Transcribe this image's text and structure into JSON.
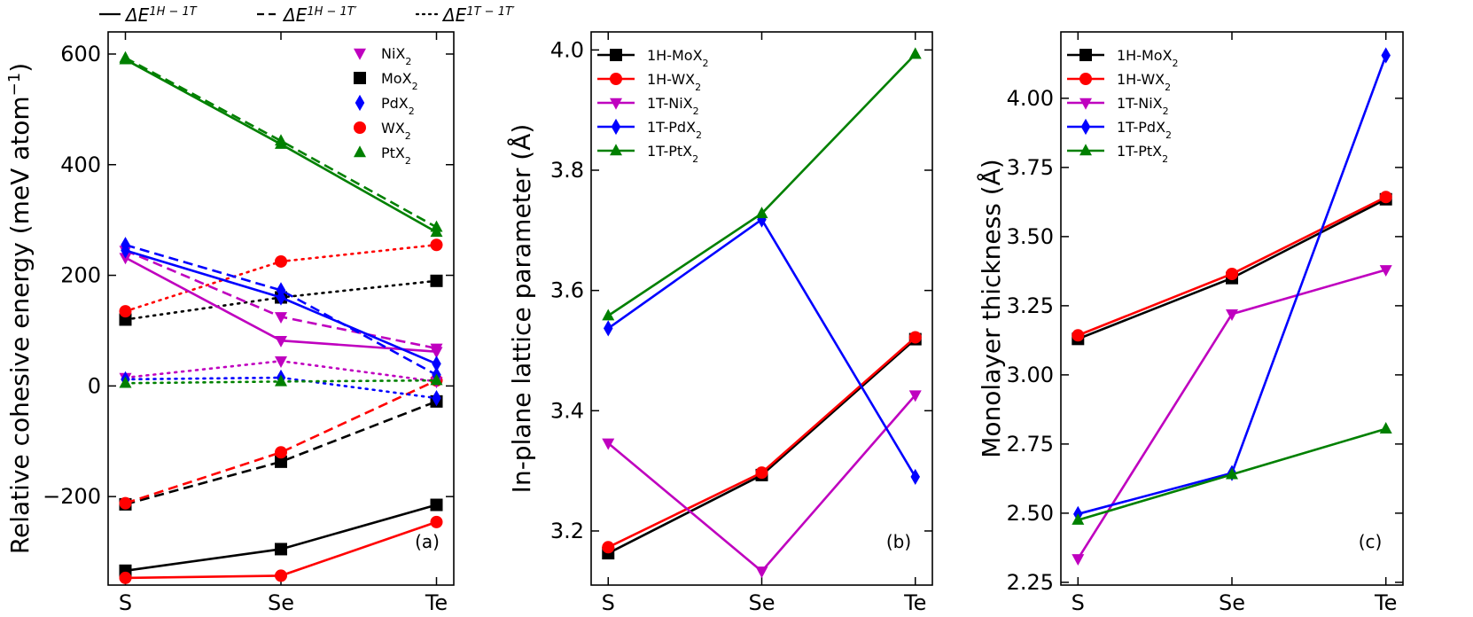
{
  "chart_data": [
    {
      "type": "line",
      "panel_label": "(a)",
      "ylabel": "Relative cohesive energy (meV atom",
      "ylabel_sup": "−1",
      "categories": [
        "S",
        "Se",
        "Te"
      ],
      "ylim": [
        -360,
        640
      ],
      "yticks": [
        {
          "v": 600,
          "t": "600"
        },
        {
          "v": 400,
          "t": "400"
        },
        {
          "v": 200,
          "t": "200"
        },
        {
          "v": 0,
          "t": "0"
        },
        {
          "v": -200,
          "t": "−200"
        }
      ],
      "top_legend": [
        {
          "dash": "solid",
          "main": "ΔE",
          "sup": "1H − 1T"
        },
        {
          "dash": "dashed",
          "main": "ΔE",
          "sup": "1H − 1T′"
        },
        {
          "dash": "dotted",
          "main": "ΔE",
          "sup": "1T − 1T′"
        }
      ],
      "legend": [
        {
          "base": "NiX",
          "sub": "2",
          "color": "#bf00bf",
          "marker": "tri_down"
        },
        {
          "base": "MoX",
          "sub": "2",
          "color": "#000000",
          "marker": "square"
        },
        {
          "base": "PdX",
          "sub": "2",
          "color": "#0000ff",
          "marker": "diamond"
        },
        {
          "base": "WX",
          "sub": "2",
          "color": "#ff0000",
          "marker": "circle"
        },
        {
          "base": "PtX",
          "sub": "2",
          "color": "#008000",
          "marker": "tri_up"
        }
      ],
      "series": [
        {
          "name": "MoX2 1H-1T",
          "color": "#000000",
          "marker": "square",
          "dash": "solid",
          "values": [
            -334,
            -295,
            -215
          ]
        },
        {
          "name": "MoX2 1H-1T'",
          "color": "#000000",
          "marker": "square",
          "dash": "dashed",
          "values": [
            -214,
            -137,
            -28
          ]
        },
        {
          "name": "MoX2 1T-1T'",
          "color": "#000000",
          "marker": "square",
          "dash": "dotted",
          "values": [
            120,
            160,
            190
          ]
        },
        {
          "name": "WX2 1H-1T",
          "color": "#ff0000",
          "marker": "circle",
          "dash": "solid",
          "values": [
            -347,
            -343,
            -246
          ]
        },
        {
          "name": "WX2 1H-1T'",
          "color": "#ff0000",
          "marker": "circle",
          "dash": "dashed",
          "values": [
            -212,
            -120,
            10
          ]
        },
        {
          "name": "WX2 1T-1T'",
          "color": "#ff0000",
          "marker": "circle",
          "dash": "dotted",
          "values": [
            135,
            225,
            255
          ]
        },
        {
          "name": "NiX2 1H-1T",
          "color": "#bf00bf",
          "marker": "tri_down",
          "dash": "solid",
          "values": [
            232,
            82,
            62
          ]
        },
        {
          "name": "NiX2 1H-1T'",
          "color": "#bf00bf",
          "marker": "tri_down",
          "dash": "dashed",
          "values": [
            245,
            125,
            68
          ]
        },
        {
          "name": "NiX2 1T-1T'",
          "color": "#bf00bf",
          "marker": "tri_down",
          "dash": "dotted",
          "values": [
            15,
            45,
            8
          ]
        },
        {
          "name": "PdX2 1H-1T",
          "color": "#0000ff",
          "marker": "diamond",
          "dash": "solid",
          "values": [
            245,
            160,
            40
          ]
        },
        {
          "name": "PdX2 1H-1T'",
          "color": "#0000ff",
          "marker": "diamond",
          "dash": "dashed",
          "values": [
            255,
            173,
            20
          ]
        },
        {
          "name": "PdX2 1T-1T'",
          "color": "#0000ff",
          "marker": "diamond",
          "dash": "dotted",
          "values": [
            12,
            15,
            -22
          ]
        },
        {
          "name": "PtX2 1H-1T",
          "color": "#008000",
          "marker": "tri_up",
          "dash": "solid",
          "values": [
            590,
            437,
            278
          ]
        },
        {
          "name": "PtX2 1H-1T'",
          "color": "#008000",
          "marker": "tri_up",
          "dash": "dashed",
          "values": [
            593,
            443,
            287
          ]
        },
        {
          "name": "PtX2 1T-1T'",
          "color": "#008000",
          "marker": "tri_up",
          "dash": "dotted",
          "values": [
            5,
            8,
            10
          ]
        }
      ]
    },
    {
      "type": "line",
      "panel_label": "(b)",
      "ylabel": "In-plane lattice parameter (Å)",
      "categories": [
        "S",
        "Se",
        "Te"
      ],
      "ylim": [
        3.11,
        4.03
      ],
      "yticks": [
        {
          "v": 3.2,
          "t": "3.2"
        },
        {
          "v": 3.4,
          "t": "3.4"
        },
        {
          "v": 3.6,
          "t": "3.6"
        },
        {
          "v": 3.8,
          "t": "3.8"
        },
        {
          "v": 4.0,
          "t": "4.0"
        }
      ],
      "legend": [
        {
          "base": "1H-MoX",
          "sub": "2",
          "color": "#000000",
          "marker": "square"
        },
        {
          "base": "1H-WX",
          "sub": "2",
          "color": "#ff0000",
          "marker": "circle"
        },
        {
          "base": "1T-NiX",
          "sub": "2",
          "color": "#bf00bf",
          "marker": "tri_down"
        },
        {
          "base": "1T-PdX",
          "sub": "2",
          "color": "#0000ff",
          "marker": "diamond"
        },
        {
          "base": "1T-PtX",
          "sub": "2",
          "color": "#008000",
          "marker": "tri_up"
        }
      ],
      "series": [
        {
          "name": "1H-MoX2",
          "color": "#000000",
          "marker": "square",
          "dash": "solid",
          "values": [
            3.163,
            3.293,
            3.519
          ]
        },
        {
          "name": "1H-WX2",
          "color": "#ff0000",
          "marker": "circle",
          "dash": "solid",
          "values": [
            3.173,
            3.297,
            3.522
          ]
        },
        {
          "name": "1T-NiX2",
          "color": "#bf00bf",
          "marker": "tri_down",
          "dash": "solid",
          "values": [
            3.346,
            3.133,
            3.426
          ]
        },
        {
          "name": "1T-PdX2",
          "color": "#0000ff",
          "marker": "diamond",
          "dash": "solid",
          "values": [
            3.537,
            3.718,
            3.29
          ]
        },
        {
          "name": "1T-PtX2",
          "color": "#008000",
          "marker": "tri_up",
          "dash": "solid",
          "values": [
            3.558,
            3.728,
            3.993
          ]
        }
      ]
    },
    {
      "type": "line",
      "panel_label": "(c)",
      "ylabel": "Monolayer thickness (Å)",
      "categories": [
        "S",
        "Se",
        "Te"
      ],
      "ylim": [
        2.24,
        4.24
      ],
      "yticks": [
        {
          "v": 2.25,
          "t": "2.25"
        },
        {
          "v": 2.5,
          "t": "2.50"
        },
        {
          "v": 2.75,
          "t": "2.75"
        },
        {
          "v": 3.0,
          "t": "3.00"
        },
        {
          "v": 3.25,
          "t": "3.25"
        },
        {
          "v": 3.5,
          "t": "3.50"
        },
        {
          "v": 3.75,
          "t": "3.75"
        },
        {
          "v": 4.0,
          "t": "4.00"
        }
      ],
      "legend": [
        {
          "base": "1H-MoX",
          "sub": "2",
          "color": "#000000",
          "marker": "square"
        },
        {
          "base": "1H-WX",
          "sub": "2",
          "color": "#ff0000",
          "marker": "circle"
        },
        {
          "base": "1T-NiX",
          "sub": "2",
          "color": "#bf00bf",
          "marker": "tri_down"
        },
        {
          "base": "1T-PdX",
          "sub": "2",
          "color": "#0000ff",
          "marker": "diamond"
        },
        {
          "base": "1T-PtX",
          "sub": "2",
          "color": "#008000",
          "marker": "tri_up"
        }
      ],
      "series": [
        {
          "name": "1H-MoX2",
          "color": "#000000",
          "marker": "square",
          "dash": "solid",
          "values": [
            3.13,
            3.35,
            3.635
          ]
        },
        {
          "name": "1H-WX2",
          "color": "#ff0000",
          "marker": "circle",
          "dash": "solid",
          "values": [
            3.143,
            3.365,
            3.643
          ]
        },
        {
          "name": "1T-NiX2",
          "color": "#bf00bf",
          "marker": "tri_down",
          "dash": "solid",
          "values": [
            2.335,
            3.22,
            3.38
          ]
        },
        {
          "name": "1T-PdX2",
          "color": "#0000ff",
          "marker": "diamond",
          "dash": "solid",
          "values": [
            2.497,
            2.645,
            4.155
          ]
        },
        {
          "name": "1T-PtX2",
          "color": "#008000",
          "marker": "tri_up",
          "dash": "solid",
          "values": [
            2.475,
            2.64,
            2.805
          ]
        }
      ]
    }
  ]
}
